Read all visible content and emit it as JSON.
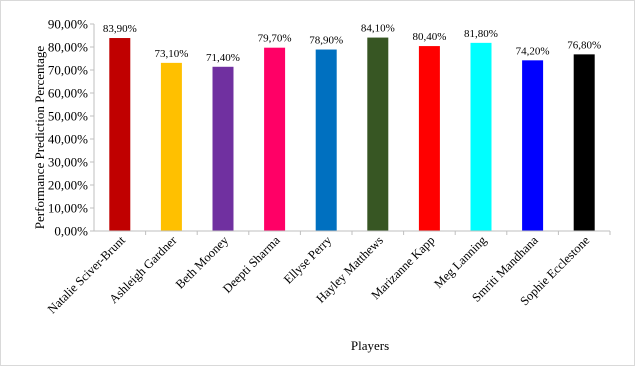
{
  "chart_data": {
    "type": "bar",
    "title": "",
    "xlabel": "Players",
    "ylabel": "Performance Prediction Percentage",
    "ylim": [
      0,
      90
    ],
    "ytick_step": 10,
    "ytick_labels": [
      "0,00%",
      "10,00%",
      "20,00%",
      "30,00%",
      "40,00%",
      "50,00%",
      "60,00%",
      "70,00%",
      "80,00%",
      "90,00%"
    ],
    "grid": false,
    "categories": [
      "Natalie Sciver-Brunt",
      "Ashleigh Gardner",
      "Beth Mooney",
      "Deepti Sharma",
      "Ellyse Perry",
      "Hayley Matthews",
      "Marizanne Kapp",
      "Meg Lanning",
      "Smriti Mandhana",
      "Sophie Ecclestone"
    ],
    "values": [
      83.9,
      73.1,
      71.4,
      79.7,
      78.9,
      84.1,
      80.4,
      81.8,
      74.2,
      76.8
    ],
    "data_labels": [
      "83,90%",
      "73,10%",
      "71,40%",
      "79,70%",
      "78,90%",
      "84,10%",
      "80,40%",
      "81,80%",
      "74,20%",
      "76,80%"
    ],
    "colors": [
      "#c00000",
      "#ffc000",
      "#7030a0",
      "#ff0066",
      "#0070c0",
      "#375623",
      "#ff0000",
      "#00ffff",
      "#0000ff",
      "#000000"
    ]
  }
}
